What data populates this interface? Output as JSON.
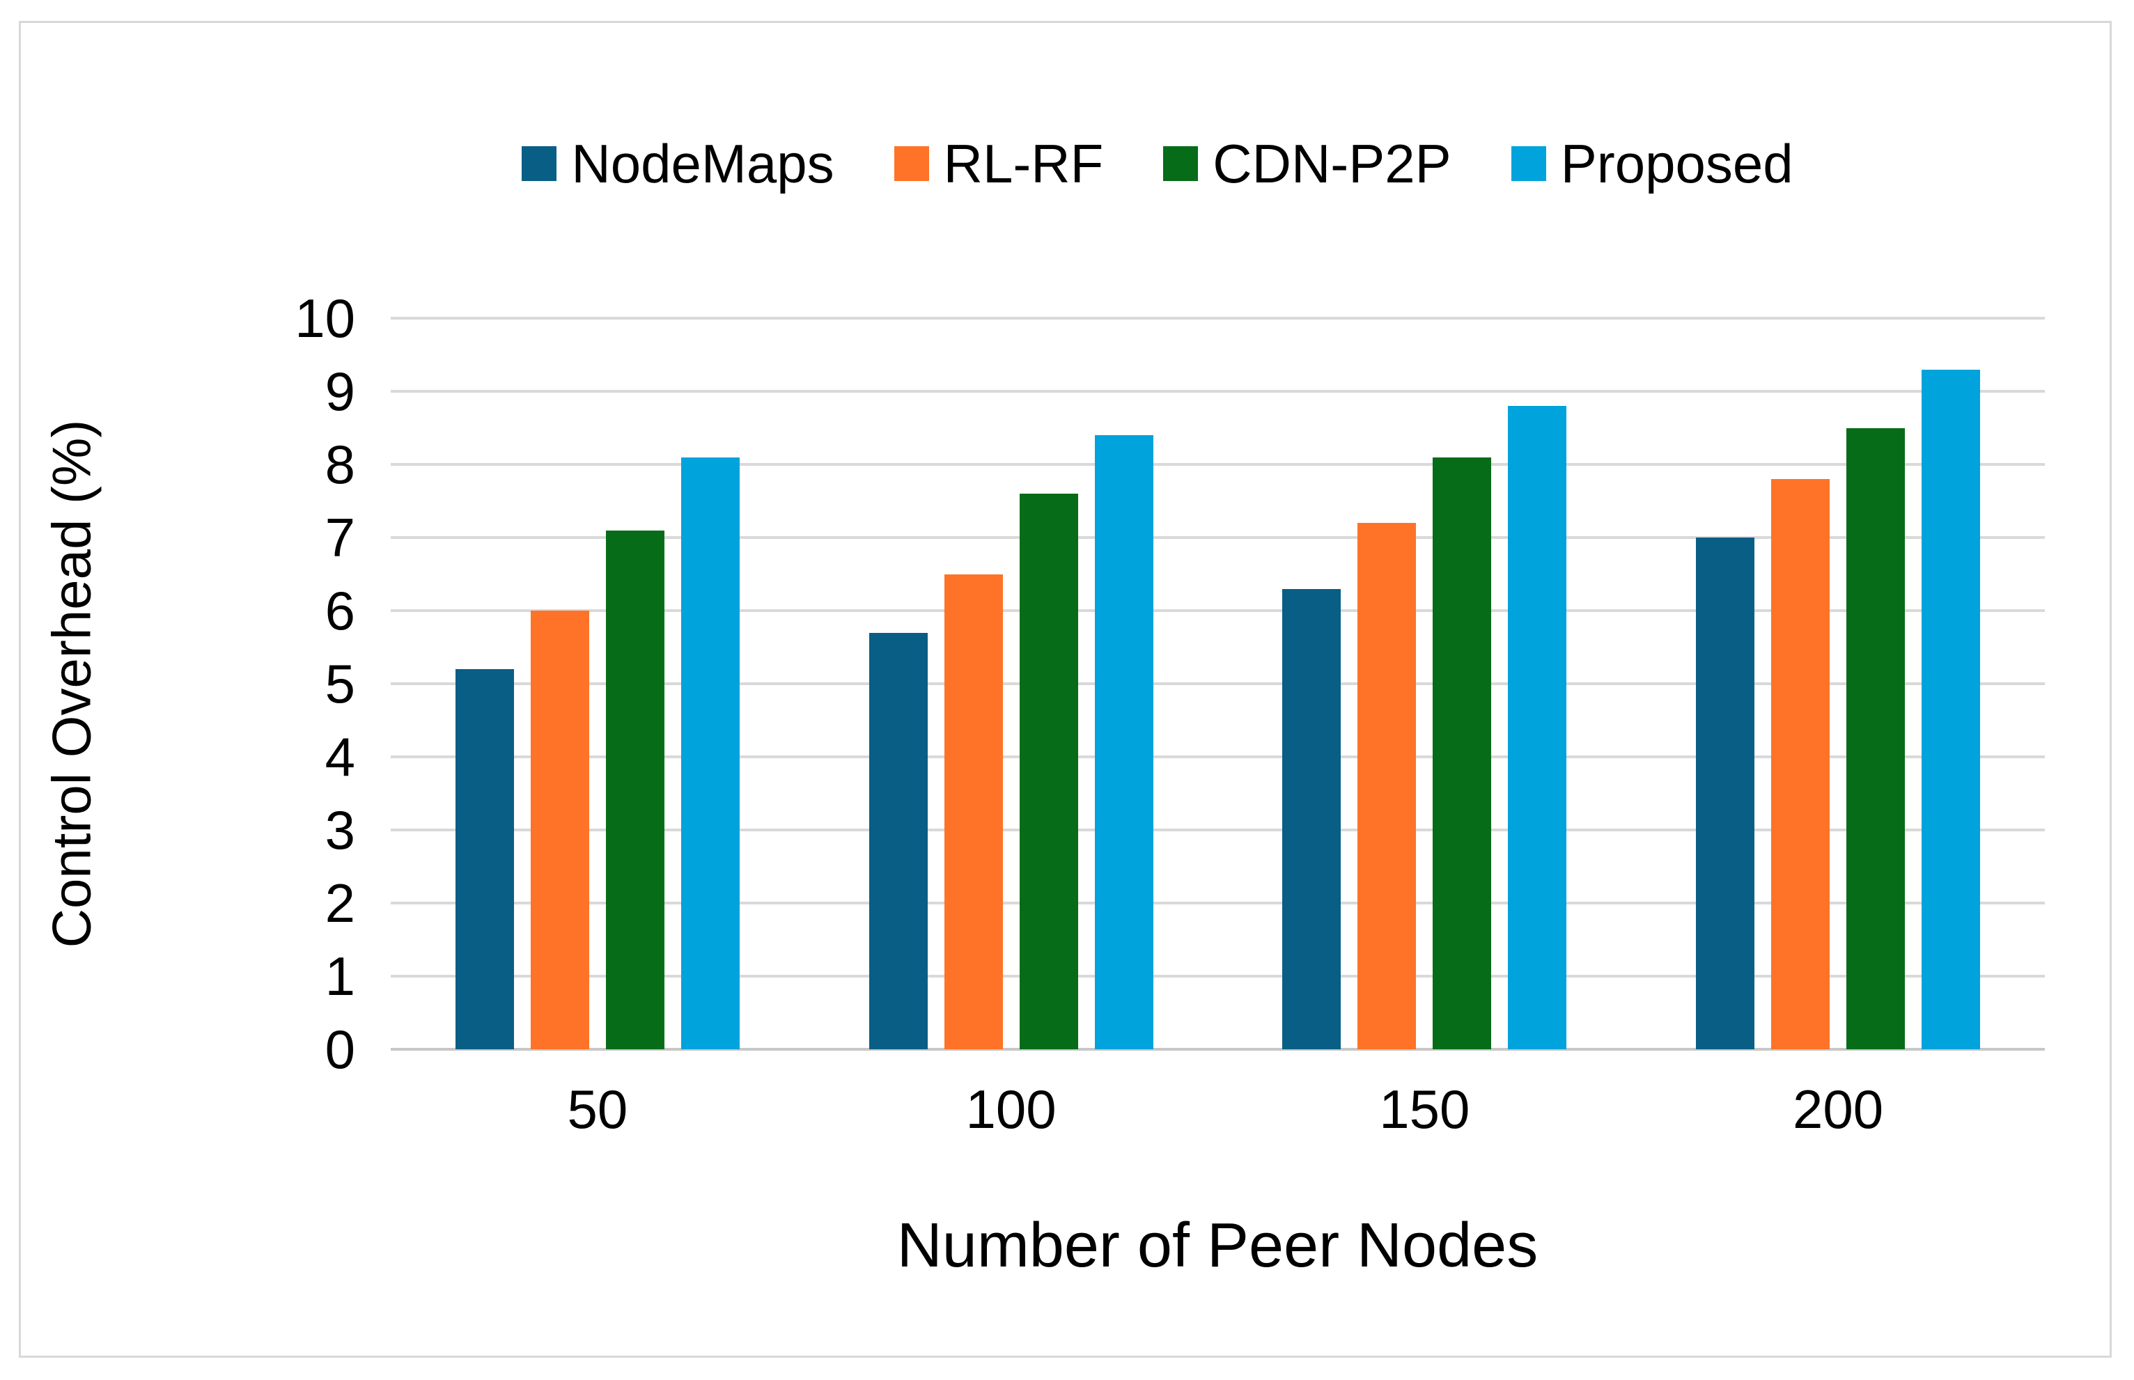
{
  "chart_data": {
    "type": "bar",
    "categories": [
      "50",
      "100",
      "150",
      "200"
    ],
    "series": [
      {
        "name": "NodeMaps",
        "color": "#095e86",
        "values": [
          5.2,
          5.7,
          6.3,
          7.0
        ]
      },
      {
        "name": "RL-RF",
        "color": "#fe7327",
        "values": [
          6.0,
          6.5,
          7.2,
          7.8
        ]
      },
      {
        "name": "CDN-P2P",
        "color": "#076c18",
        "values": [
          7.1,
          7.6,
          8.1,
          8.5
        ]
      },
      {
        "name": "Proposed",
        "color": "#00a3dc",
        "values": [
          8.1,
          8.4,
          8.8,
          9.3
        ]
      }
    ],
    "title": "",
    "xlabel": "Number of Peer Nodes",
    "ylabel": "Control Overhead (%)",
    "ylim": [
      0,
      10
    ],
    "ytick_step": 1,
    "yticks": [
      "0",
      "1",
      "2",
      "3",
      "4",
      "5",
      "6",
      "7",
      "8",
      "9",
      "10"
    ],
    "grid": "horizontal",
    "gridline_color": "#d9d9d9",
    "axis_line_color": "#c7c7c7",
    "frame_color": "#d8d8d8",
    "legend_position": "top"
  }
}
